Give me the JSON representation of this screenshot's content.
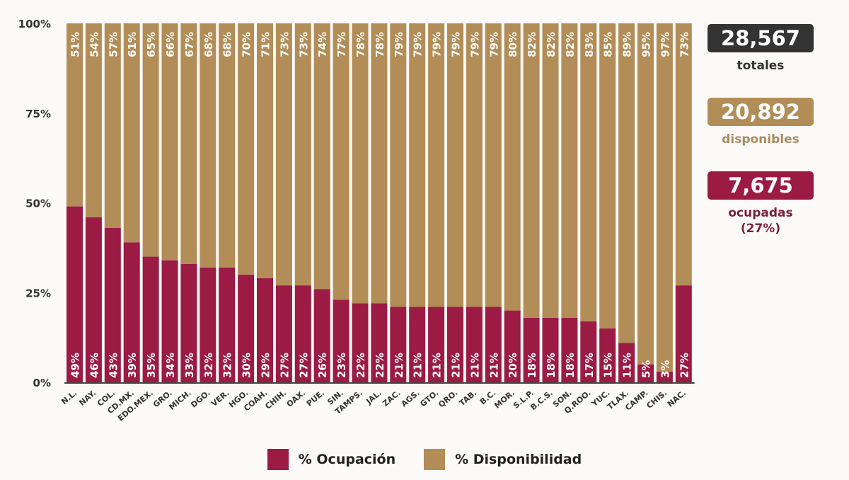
{
  "chart_data": {
    "type": "bar",
    "stacked": true,
    "categories": [
      "N.L.",
      "NAY.",
      "COL.",
      "CD.MX.",
      "EDO.MEX.",
      "GRO.",
      "MICH.",
      "DGO.",
      "VER.",
      "HGO.",
      "COAH.",
      "CHIH.",
      "OAX.",
      "PUE.",
      "SIN.",
      "TAMPS.",
      "JAL.",
      "ZAC.",
      "AGS.",
      "GTO.",
      "QRO.",
      "TAB.",
      "B.C.",
      "MOR.",
      "S.L.P.",
      "B.C.S.",
      "SON.",
      "Q.ROO.",
      "YUC.",
      "TLAX.",
      "CAMP.",
      "CHIS.",
      "NAC."
    ],
    "series": [
      {
        "name": "% Ocupación",
        "color": "#9b1b45",
        "values": [
          49,
          46,
          43,
          39,
          35,
          34,
          33,
          32,
          32,
          30,
          29,
          27,
          27,
          26,
          23,
          22,
          22,
          21,
          21,
          21,
          21,
          21,
          21,
          20,
          18,
          18,
          18,
          17,
          15,
          11,
          5,
          3,
          27
        ]
      },
      {
        "name": "% Disponibilidad",
        "color": "#b38d57",
        "values": [
          51,
          54,
          57,
          61,
          65,
          66,
          67,
          68,
          68,
          70,
          71,
          73,
          73,
          74,
          77,
          78,
          78,
          79,
          79,
          79,
          79,
          79,
          79,
          80,
          82,
          82,
          82,
          83,
          85,
          89,
          95,
          97,
          73
        ]
      }
    ],
    "yticks": [
      "0%",
      "25%",
      "50%",
      "75%",
      "100%"
    ],
    "ylim": [
      0,
      100
    ],
    "legend_position": "bottom"
  },
  "kpis": {
    "total": {
      "value": "28,567",
      "label": "totales",
      "color": "#333333"
    },
    "available": {
      "value": "20,892",
      "label": "disponibles",
      "color": "#b38d57"
    },
    "occupied": {
      "value": "7,675",
      "label": "ocupadas",
      "pct": "(27%)",
      "color": "#9b1b45"
    }
  }
}
